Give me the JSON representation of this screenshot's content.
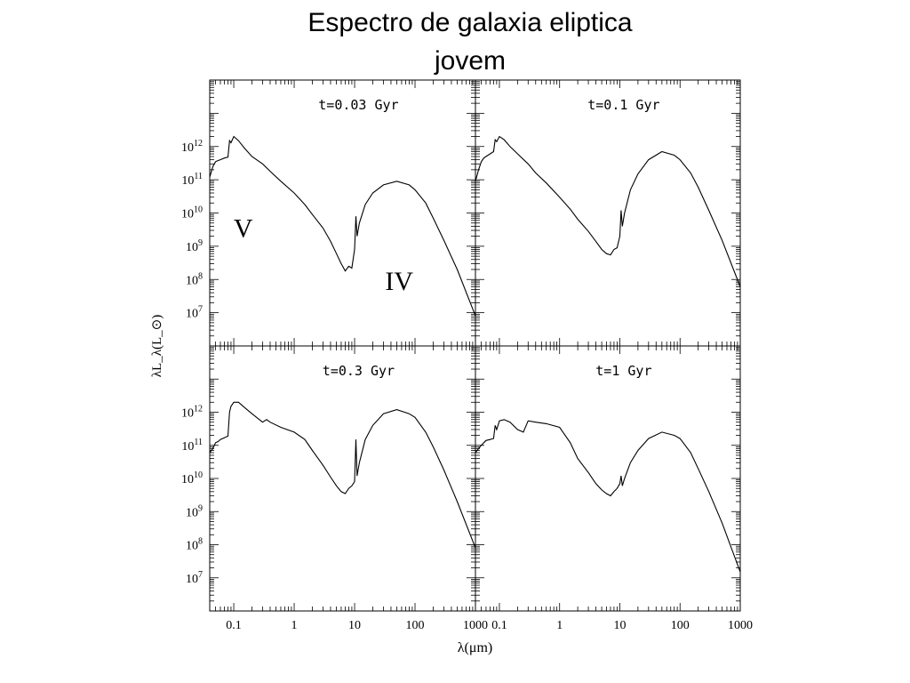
{
  "slide": {
    "title_line1": "Espectro de galaxia eliptica",
    "title_line2": "jovem"
  },
  "chart_data": {
    "type": "line",
    "title": "Espectro de galaxia eliptica jovem",
    "xlabel": "λ(μm)",
    "ylabel": "λL_λ(L_⊙)",
    "x_scale": "log",
    "y_scale": "log",
    "xlim": [
      0.04,
      1000
    ],
    "ylim": [
      1000000,
      100000000000000
    ],
    "x_ticks": [
      {
        "value": 0.1,
        "label": "0.1"
      },
      {
        "value": 1,
        "label": "1"
      },
      {
        "value": 10,
        "label": "10"
      },
      {
        "value": 100,
        "label": "100"
      },
      {
        "value": 1000,
        "label": "1000"
      }
    ],
    "y_ticks": [
      {
        "value": 10000000,
        "base": "10",
        "exp": "7"
      },
      {
        "value": 100000000,
        "base": "10",
        "exp": "8"
      },
      {
        "value": 1000000000,
        "base": "10",
        "exp": "9"
      },
      {
        "value": 10000000000,
        "base": "10",
        "exp": "10"
      },
      {
        "value": 100000000000,
        "base": "10",
        "exp": "11"
      },
      {
        "value": 1000000000000,
        "base": "10",
        "exp": "12"
      }
    ],
    "annotations": [
      {
        "text": "V",
        "panel": 0
      },
      {
        "text": "IV",
        "panel": 0
      }
    ],
    "panels": [
      {
        "label": "t=0.03 Gyr",
        "x": [
          0.04,
          0.045,
          0.05,
          0.055,
          0.06,
          0.07,
          0.08,
          0.085,
          0.09,
          0.1,
          0.12,
          0.15,
          0.2,
          0.3,
          0.4,
          0.6,
          1,
          1.5,
          2,
          3,
          4,
          5,
          6,
          7,
          8,
          9,
          10,
          10.5,
          11,
          12,
          15,
          20,
          30,
          50,
          80,
          100,
          150,
          200,
          300,
          500,
          1000
        ],
        "y": [
          120000000000.0,
          250000000000.0,
          350000000000.0,
          380000000000.0,
          400000000000.0,
          450000000000.0,
          480000000000.0,
          1500000000000.0,
          1300000000000.0,
          2000000000000.0,
          1500000000000.0,
          900000000000.0,
          500000000000.0,
          300000000000.0,
          180000000000.0,
          90000000000.0,
          40000000000.0,
          18000000000.0,
          9000000000.0,
          3500000000.0,
          1400000000.0,
          600000000.0,
          300000000.0,
          180000000.0,
          250000000.0,
          220000000.0,
          800000000.0,
          8000000000.0,
          2000000000.0,
          5000000000.0,
          18000000000.0,
          40000000000.0,
          70000000000.0,
          90000000000.0,
          70000000000.0,
          50000000000.0,
          20000000000.0,
          7000000000.0,
          1500000000.0,
          200000000.0,
          8000000.0
        ]
      },
      {
        "label": "t=0.1 Gyr",
        "x": [
          0.04,
          0.045,
          0.05,
          0.055,
          0.06,
          0.07,
          0.08,
          0.085,
          0.09,
          0.1,
          0.12,
          0.15,
          0.2,
          0.3,
          0.4,
          0.6,
          1,
          1.5,
          2,
          3,
          4,
          5,
          6,
          7,
          8,
          9,
          10,
          10.5,
          11,
          12,
          15,
          20,
          30,
          50,
          80,
          100,
          150,
          200,
          300,
          500,
          1000
        ],
        "y": [
          90000000000.0,
          200000000000.0,
          350000000000.0,
          450000000000.0,
          500000000000.0,
          600000000000.0,
          700000000000.0,
          1600000000000.0,
          1400000000000.0,
          2000000000000.0,
          1600000000000.0,
          1000000000000.0,
          600000000000.0,
          300000000000.0,
          160000000000.0,
          80000000000.0,
          30000000000.0,
          13000000000.0,
          6500000000.0,
          2800000000.0,
          1400000000.0,
          800000000.0,
          600000000.0,
          550000000.0,
          800000000.0,
          900000000.0,
          2000000000.0,
          12000000000.0,
          4000000000.0,
          10000000000.0,
          50000000000.0,
          150000000000.0,
          400000000000.0,
          700000000000.0,
          550000000000.0,
          400000000000.0,
          160000000000.0,
          60000000000.0,
          12000000000.0,
          1500000000.0,
          60000000.0
        ]
      },
      {
        "label": "t=0.3 Gyr",
        "x": [
          0.04,
          0.045,
          0.05,
          0.055,
          0.06,
          0.07,
          0.08,
          0.085,
          0.09,
          0.1,
          0.12,
          0.15,
          0.2,
          0.3,
          0.35,
          0.4,
          0.6,
          1,
          1.5,
          2,
          3,
          4,
          5,
          6,
          7,
          8,
          9,
          10,
          10.5,
          11,
          12,
          15,
          20,
          30,
          50,
          80,
          100,
          150,
          200,
          300,
          500,
          1000
        ],
        "y": [
          60000000000.0,
          80000000000.0,
          120000000000.0,
          130000000000.0,
          150000000000.0,
          170000000000.0,
          190000000000.0,
          1000000000000.0,
          1500000000000.0,
          2000000000000.0,
          2000000000000.0,
          1400000000000.0,
          900000000000.0,
          500000000000.0,
          600000000000.0,
          500000000000.0,
          350000000000.0,
          250000000000.0,
          150000000000.0,
          70000000000.0,
          25000000000.0,
          11000000000.0,
          6000000000.0,
          4000000000.0,
          3500000000.0,
          5000000000.0,
          6000000000.0,
          8000000000.0,
          150000000000.0,
          12000000000.0,
          30000000000.0,
          150000000000.0,
          400000000000.0,
          900000000000.0,
          1200000000000.0,
          900000000000.0,
          700000000000.0,
          250000000000.0,
          90000000000.0,
          18000000000.0,
          2000000000.0,
          80000000.0
        ]
      },
      {
        "label": "t=1 Gyr",
        "x": [
          0.04,
          0.045,
          0.05,
          0.055,
          0.06,
          0.07,
          0.08,
          0.085,
          0.09,
          0.1,
          0.12,
          0.15,
          0.2,
          0.25,
          0.3,
          0.4,
          0.6,
          1,
          1.5,
          2,
          3,
          4,
          5,
          6,
          7,
          8,
          9,
          10,
          10.5,
          11,
          12,
          15,
          20,
          30,
          50,
          80,
          100,
          150,
          200,
          300,
          500,
          1000
        ],
        "y": [
          60000000000.0,
          80000000000.0,
          100000000000.0,
          120000000000.0,
          140000000000.0,
          150000000000.0,
          160000000000.0,
          400000000000.0,
          300000000000.0,
          550000000000.0,
          600000000000.0,
          500000000000.0,
          300000000000.0,
          250000000000.0,
          550000000000.0,
          500000000000.0,
          450000000000.0,
          350000000000.0,
          120000000000.0,
          40000000000.0,
          15000000000.0,
          7000000000.0,
          4500000000.0,
          3500000000.0,
          3000000000.0,
          4000000000.0,
          5000000000.0,
          7000000000.0,
          12000000000.0,
          6000000000.0,
          10000000000.0,
          30000000000.0,
          70000000000.0,
          160000000000.0,
          250000000000.0,
          200000000000.0,
          160000000000.0,
          60000000000.0,
          20000000000.0,
          4000000000.0,
          450000000.0,
          15000000.0
        ]
      }
    ]
  }
}
